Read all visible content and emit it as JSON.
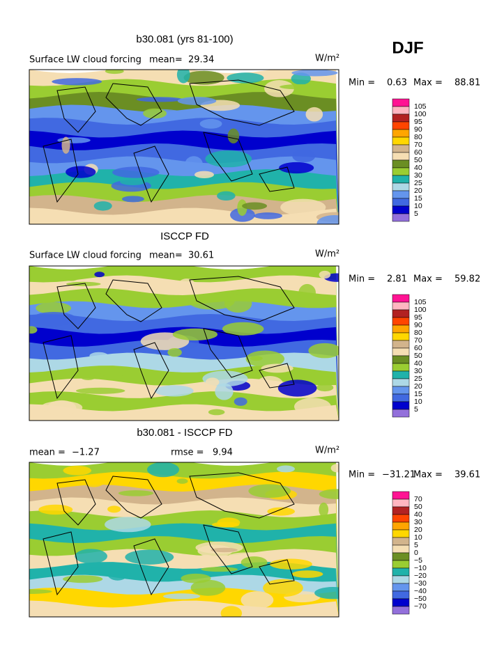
{
  "header": {
    "season": "DJF"
  },
  "panels": [
    {
      "title": "b30.081 (yrs 81-100)",
      "subtitle": "Surface LW cloud forcing",
      "mean_label": "mean=",
      "mean": "29.34",
      "units": "W/m²",
      "min_label": "Min =",
      "min": "0.63",
      "max_label": "Max =",
      "max": "88.81",
      "levels": [
        "105",
        "100",
        "95",
        "90",
        "80",
        "70",
        "60",
        "50",
        "40",
        "30",
        "25",
        "20",
        "15",
        "10",
        "5"
      ]
    },
    {
      "title": "ISCCP FD",
      "subtitle": "Surface LW cloud forcing",
      "mean_label": "mean=",
      "mean": "30.61",
      "units": "W/m²",
      "min_label": "Min =",
      "min": "2.81",
      "max_label": "Max =",
      "max": "59.82",
      "levels": [
        "105",
        "100",
        "95",
        "90",
        "80",
        "70",
        "60",
        "50",
        "40",
        "30",
        "25",
        "20",
        "15",
        "10",
        "5"
      ]
    },
    {
      "title": "b30.081 - ISCCP FD",
      "mean_label": "mean =",
      "mean": "−1.27",
      "rmse_label": "rmse =",
      "rmse": "9.94",
      "units": "W/m²",
      "min_label": "Min =",
      "min": "−31.21",
      "max_label": "Max =",
      "max": "39.61",
      "levels": [
        "70",
        "50",
        "40",
        "30",
        "20",
        "10",
        "5",
        "0",
        "−5",
        "−10",
        "−20",
        "−30",
        "−40",
        "−50",
        "−70"
      ]
    }
  ],
  "colorbar_colors": [
    "#ff1493",
    "#ffb6c1",
    "#b22222",
    "#ff4500",
    "#ffa500",
    "#ffd700",
    "#d2b48c",
    "#f5deb3",
    "#6b8e23",
    "#9acd32",
    "#20b2aa",
    "#add8e6",
    "#6495ed",
    "#4169e1",
    "#0000cd",
    "#9370db"
  ]
}
